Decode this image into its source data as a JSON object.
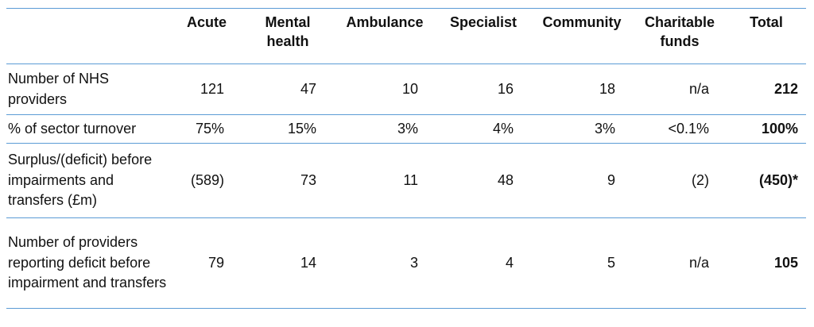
{
  "table": {
    "headers": [
      "",
      "Acute",
      "Mental health",
      "Ambulance",
      "Specialist",
      "Community",
      "Charitable funds",
      "Total"
    ],
    "rows": [
      {
        "label": "Number of NHS providers",
        "cells": [
          "121",
          "47",
          "10",
          "16",
          "18",
          "n/a",
          "212"
        ]
      },
      {
        "label": "% of sector turnover",
        "cells": [
          "75%",
          "15%",
          "3%",
          "4%",
          "3%",
          "<0.1%",
          "100%"
        ]
      },
      {
        "label": "Surplus/(deficit) before impairments and transfers (£m)",
        "cells": [
          "(589)",
          "73",
          "11",
          "48",
          "9",
          "(2)",
          "(450)*"
        ]
      },
      {
        "label": "Number of providers reporting deficit before impairment and transfers",
        "cells": [
          "79",
          "14",
          "3",
          "4",
          "5",
          "n/a",
          "105"
        ]
      }
    ]
  },
  "colors": {
    "rule": "#5b9bd5",
    "text": "#111111"
  }
}
